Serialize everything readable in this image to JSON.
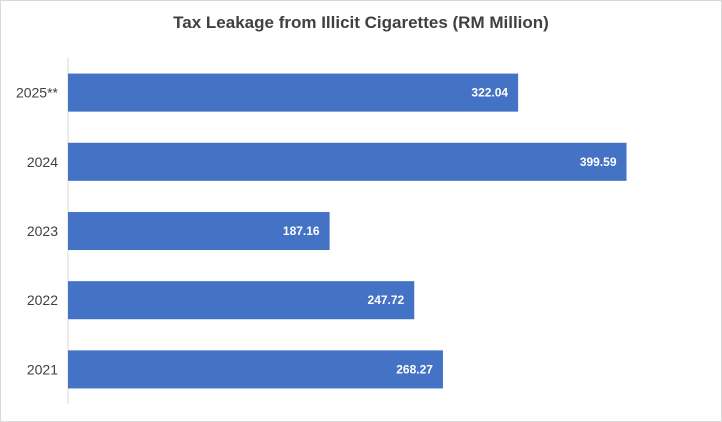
{
  "chart_data": {
    "type": "bar",
    "orientation": "horizontal",
    "title": "Tax Leakage from Illicit Cigarettes (RM Million)",
    "categories": [
      "2025**",
      "2024",
      "2023",
      "2022",
      "2021"
    ],
    "values": [
      322.04,
      399.59,
      187.16,
      247.72,
      268.27
    ],
    "value_labels": [
      "322.04",
      "399.59",
      "187.16",
      "247.72",
      "268.27"
    ],
    "xlim": [
      0,
      440
    ],
    "grid": false,
    "legend": "none",
    "bar_color": "#4472c4"
  }
}
